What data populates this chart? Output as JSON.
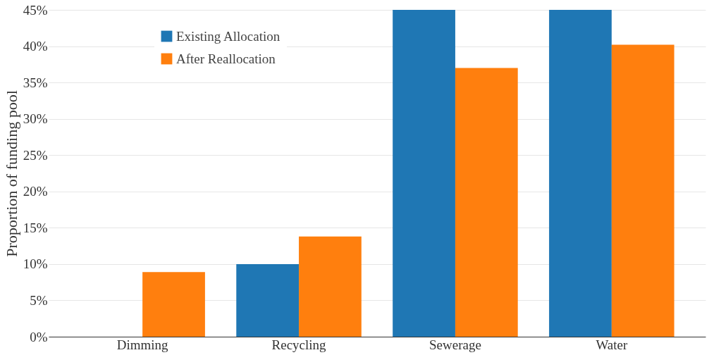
{
  "chart_data": {
    "type": "bar",
    "ylabel": "Proportion of funding pool",
    "categories": [
      "Dimming",
      "Recycling",
      "Sewerage",
      "Water"
    ],
    "series": [
      {
        "name": "Existing Allocation",
        "color": "#1f77b4",
        "values": [
          0,
          10,
          45,
          45
        ]
      },
      {
        "name": "After Reallocation",
        "color": "#ff7f0e",
        "values": [
          8.9,
          13.8,
          37.0,
          40.2
        ]
      }
    ],
    "ylim": [
      0,
      45
    ],
    "yticks": [
      {
        "value": 0,
        "label": "0%"
      },
      {
        "value": 5,
        "label": "5%"
      },
      {
        "value": 10,
        "label": "10%"
      },
      {
        "value": 15,
        "label": "15%"
      },
      {
        "value": 20,
        "label": "20%"
      },
      {
        "value": 25,
        "label": "25%"
      },
      {
        "value": 30,
        "label": "30%"
      },
      {
        "value": 35,
        "label": "35%"
      },
      {
        "value": 40,
        "label": "40%"
      },
      {
        "value": 45,
        "label": "45%"
      }
    ],
    "grid": "y",
    "legend": "top left"
  }
}
